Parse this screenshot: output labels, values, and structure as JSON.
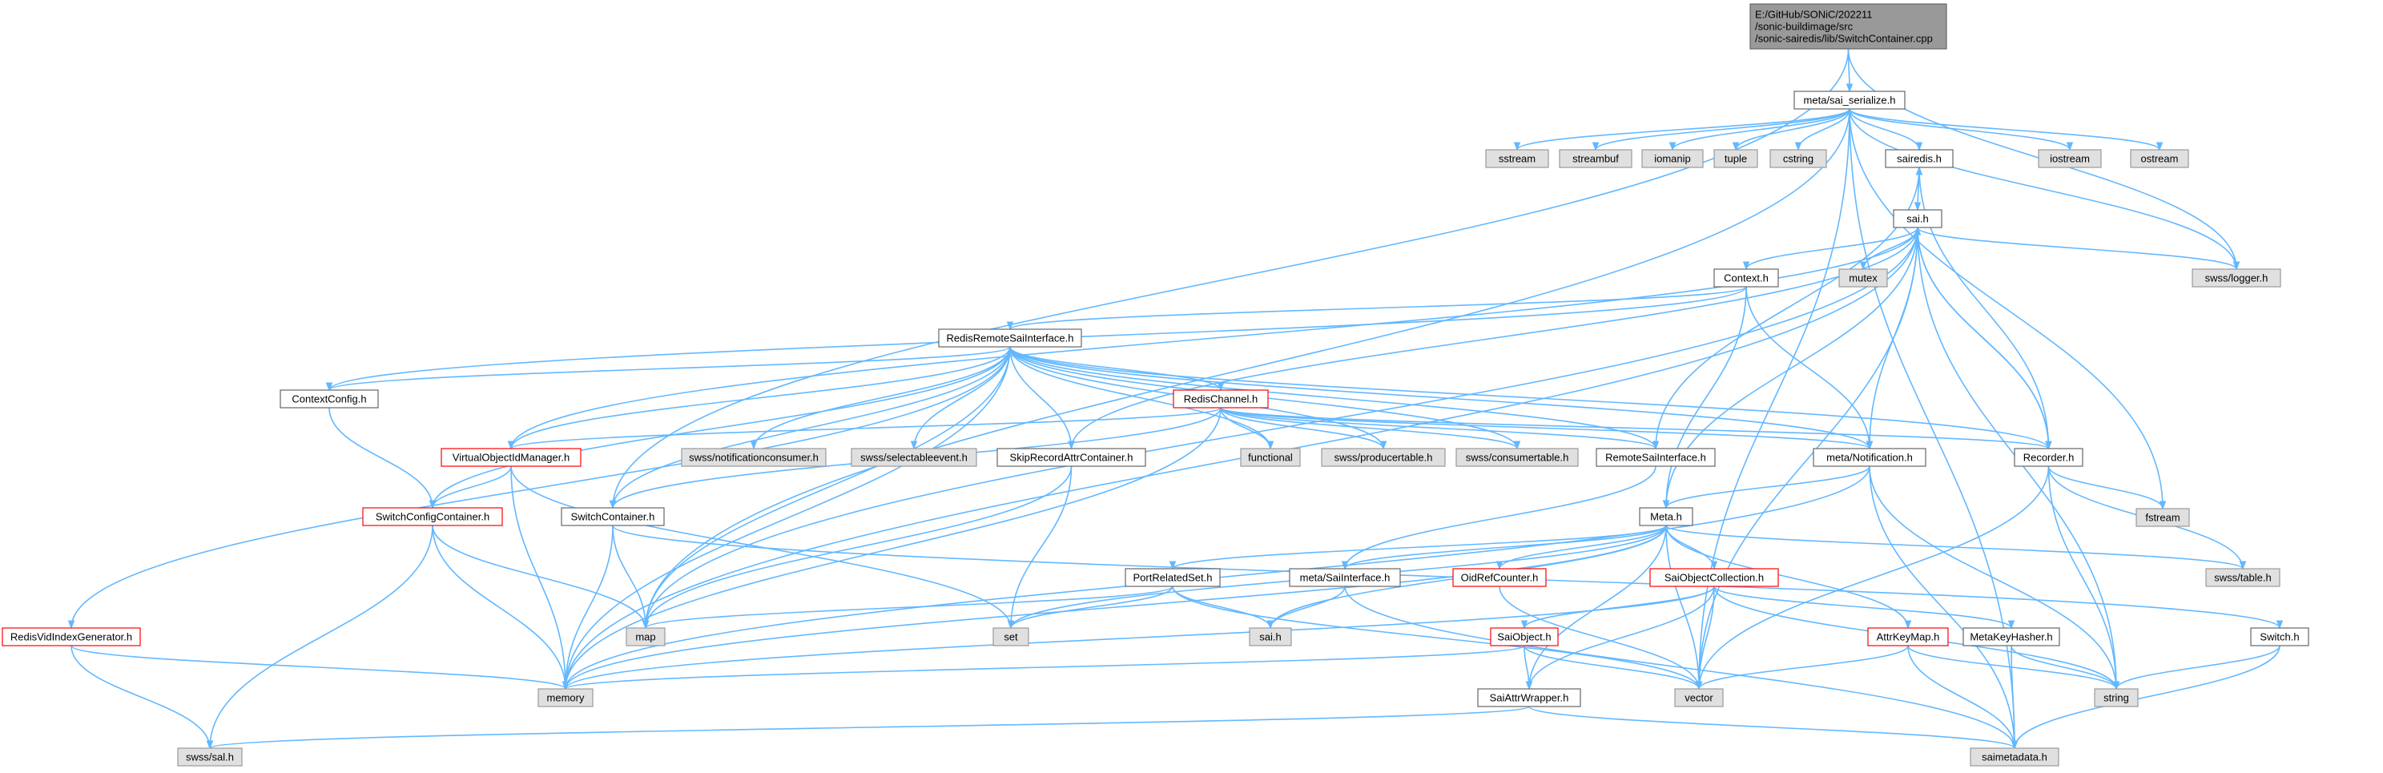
{
  "colors": {
    "edge": "#63b8ff",
    "root_fill": "#999999",
    "root_border": "#666666",
    "doc_border": "#666666",
    "file_border": "#ff0000",
    "system_fill": "#e0e0e0",
    "system_border": "#999999"
  },
  "nodes": [
    {
      "id": "root",
      "lines": [
        "E:/GitHub/SONiC/202211",
        "/sonic-buildimage/src",
        "/sonic-sairedis/lib/SwitchContainer.cpp"
      ],
      "style": "root"
    },
    {
      "id": "meta_sai_serialize",
      "lines": [
        "meta/sai_serialize.h"
      ],
      "style": "doc"
    },
    {
      "id": "sstream",
      "lines": [
        "sstream"
      ],
      "style": "system"
    },
    {
      "id": "streambuf",
      "lines": [
        "streambuf"
      ],
      "style": "system"
    },
    {
      "id": "iomanip",
      "lines": [
        "iomanip"
      ],
      "style": "system"
    },
    {
      "id": "tuple",
      "lines": [
        "tuple"
      ],
      "style": "system"
    },
    {
      "id": "cstring",
      "lines": [
        "cstring"
      ],
      "style": "system"
    },
    {
      "id": "sairedis_h",
      "lines": [
        "sairedis.h"
      ],
      "style": "doc"
    },
    {
      "id": "iostream",
      "lines": [
        "iostream"
      ],
      "style": "system"
    },
    {
      "id": "ostream",
      "lines": [
        "ostream"
      ],
      "style": "system"
    },
    {
      "id": "sai_h",
      "lines": [
        "sai.h"
      ],
      "style": "doc"
    },
    {
      "id": "context_h",
      "lines": [
        "Context.h"
      ],
      "style": "doc"
    },
    {
      "id": "mutex",
      "lines": [
        "mutex"
      ],
      "style": "system"
    },
    {
      "id": "swss_logger",
      "lines": [
        "swss/logger.h"
      ],
      "style": "system"
    },
    {
      "id": "redis_remote",
      "lines": [
        "RedisRemoteSaiInterface.h"
      ],
      "style": "doc"
    },
    {
      "id": "context_config",
      "lines": [
        "ContextConfig.h"
      ],
      "style": "doc"
    },
    {
      "id": "redis_channel",
      "lines": [
        "RedisChannel.h"
      ],
      "style": "file"
    },
    {
      "id": "virtual_oid_mgr",
      "lines": [
        "VirtualObjectIdManager.h"
      ],
      "style": "file"
    },
    {
      "id": "swss_notif_consumer",
      "lines": [
        "swss/notificationconsumer.h"
      ],
      "style": "system"
    },
    {
      "id": "swss_selectable",
      "lines": [
        "swss/selectableevent.h"
      ],
      "style": "system"
    },
    {
      "id": "skip_record",
      "lines": [
        "SkipRecordAttrContainer.h"
      ],
      "style": "doc"
    },
    {
      "id": "functional",
      "lines": [
        "functional"
      ],
      "style": "system"
    },
    {
      "id": "swss_producertable",
      "lines": [
        "swss/producertable.h"
      ],
      "style": "system"
    },
    {
      "id": "swss_consumertable",
      "lines": [
        "swss/consumertable.h"
      ],
      "style": "system"
    },
    {
      "id": "remote_sai",
      "lines": [
        "RemoteSaiInterface.h"
      ],
      "style": "doc"
    },
    {
      "id": "meta_notification",
      "lines": [
        "meta/Notification.h"
      ],
      "style": "doc"
    },
    {
      "id": "recorder_h",
      "lines": [
        "Recorder.h"
      ],
      "style": "doc"
    },
    {
      "id": "fstream",
      "lines": [
        "fstream"
      ],
      "style": "system"
    },
    {
      "id": "switch_config_container",
      "lines": [
        "SwitchConfigContainer.h"
      ],
      "style": "file"
    },
    {
      "id": "switch_container",
      "lines": [
        "SwitchContainer.h"
      ],
      "style": "doc"
    },
    {
      "id": "meta_h",
      "lines": [
        "Meta.h"
      ],
      "style": "doc"
    },
    {
      "id": "swss_table",
      "lines": [
        "swss/table.h"
      ],
      "style": "system"
    },
    {
      "id": "port_related",
      "lines": [
        "PortRelatedSet.h"
      ],
      "style": "doc"
    },
    {
      "id": "meta_sai_interface",
      "lines": [
        "meta/SaiInterface.h"
      ],
      "style": "doc"
    },
    {
      "id": "oid_ref_counter",
      "lines": [
        "OidRefCounter.h"
      ],
      "style": "file"
    },
    {
      "id": "sai_object_collection",
      "lines": [
        "SaiObjectCollection.h"
      ],
      "style": "file"
    },
    {
      "id": "redis_vid_index",
      "lines": [
        "RedisVidIndexGenerator.h"
      ],
      "style": "file"
    },
    {
      "id": "map",
      "lines": [
        "map"
      ],
      "style": "system"
    },
    {
      "id": "set",
      "lines": [
        "set"
      ],
      "style": "system"
    },
    {
      "id": "sai_h2",
      "lines": [
        "sai.h"
      ],
      "style": "system"
    },
    {
      "id": "sai_object",
      "lines": [
        "SaiObject.h"
      ],
      "style": "file"
    },
    {
      "id": "attr_key_map",
      "lines": [
        "AttrKeyMap.h"
      ],
      "style": "file"
    },
    {
      "id": "meta_key_hasher",
      "lines": [
        "MetaKeyHasher.h"
      ],
      "style": "doc"
    },
    {
      "id": "switch_h",
      "lines": [
        "Switch.h"
      ],
      "style": "doc"
    },
    {
      "id": "memory",
      "lines": [
        "memory"
      ],
      "style": "system"
    },
    {
      "id": "vector",
      "lines": [
        "vector"
      ],
      "style": "system"
    },
    {
      "id": "string",
      "lines": [
        "string"
      ],
      "style": "system"
    },
    {
      "id": "sai_attr_wrapper",
      "lines": [
        "SaiAttrWrapper.h"
      ],
      "style": "doc"
    },
    {
      "id": "swss_sal",
      "lines": [
        "swss/sal.h"
      ],
      "style": "system"
    },
    {
      "id": "saimetadata",
      "lines": [
        "saimetadata.h"
      ],
      "style": "system"
    }
  ],
  "edges": [
    [
      "root",
      "meta_sai_serialize"
    ],
    [
      "root",
      "swss_logger"
    ],
    [
      "root",
      "switch_container"
    ],
    [
      "meta_sai_serialize",
      "sstream"
    ],
    [
      "meta_sai_serialize",
      "streambuf"
    ],
    [
      "meta_sai_serialize",
      "iomanip"
    ],
    [
      "meta_sai_serialize",
      "tuple"
    ],
    [
      "meta_sai_serialize",
      "cstring"
    ],
    [
      "meta_sai_serialize",
      "sairedis_h"
    ],
    [
      "meta_sai_serialize",
      "iostream"
    ],
    [
      "meta_sai_serialize",
      "ostream"
    ],
    [
      "meta_sai_serialize",
      "swss_logger"
    ],
    [
      "meta_sai_serialize",
      "saimetadata"
    ],
    [
      "meta_sai_serialize",
      "map"
    ],
    [
      "meta_sai_serialize",
      "fstream"
    ],
    [
      "meta_sai_serialize",
      "vector"
    ],
    [
      "sairedis_h",
      "sai_h"
    ],
    [
      "sai_h",
      "context_h"
    ],
    [
      "sai_h",
      "mutex"
    ],
    [
      "sai_h",
      "swss_logger"
    ],
    [
      "sai_h",
      "memory"
    ],
    [
      "sai_h",
      "map"
    ],
    [
      "sai_h",
      "meta_notification"
    ],
    [
      "sai_h",
      "meta_h"
    ],
    [
      "sai_h",
      "recorder_h"
    ],
    [
      "sai_h",
      "string"
    ],
    [
      "sai_h",
      "vector"
    ],
    [
      "context_h",
      "redis_remote"
    ],
    [
      "context_h",
      "context_config"
    ],
    [
      "context_h",
      "meta_notification"
    ],
    [
      "context_h",
      "meta_h"
    ],
    [
      "redis_remote",
      "context_config"
    ],
    [
      "redis_remote",
      "redis_channel"
    ],
    [
      "redis_remote",
      "virtual_oid_mgr"
    ],
    [
      "redis_remote",
      "swss_notif_consumer"
    ],
    [
      "redis_remote",
      "swss_selectable"
    ],
    [
      "redis_remote",
      "skip_record"
    ],
    [
      "redis_remote",
      "functional"
    ],
    [
      "redis_remote",
      "swss_producertable"
    ],
    [
      "redis_remote",
      "swss_consumertable"
    ],
    [
      "redis_remote",
      "remote_sai"
    ],
    [
      "redis_remote",
      "meta_notification"
    ],
    [
      "redis_remote",
      "recorder_h"
    ],
    [
      "redis_remote",
      "switch_config_container"
    ],
    [
      "redis_remote",
      "switch_container"
    ],
    [
      "redis_remote",
      "redis_vid_index"
    ],
    [
      "redis_remote",
      "map"
    ],
    [
      "redis_remote",
      "memory"
    ],
    [
      "redis_channel",
      "virtual_oid_mgr"
    ],
    [
      "redis_channel",
      "functional"
    ],
    [
      "redis_channel",
      "swss_producertable"
    ],
    [
      "redis_channel",
      "swss_consumertable"
    ],
    [
      "redis_channel",
      "meta_notification"
    ],
    [
      "redis_channel",
      "recorder_h"
    ],
    [
      "redis_channel",
      "switch_container"
    ],
    [
      "redis_channel",
      "memory"
    ],
    [
      "redis_channel",
      "remote_sai"
    ],
    [
      "virtual_oid_mgr",
      "switch_config_container"
    ],
    [
      "virtual_oid_mgr",
      "set"
    ],
    [
      "virtual_oid_mgr",
      "memory"
    ],
    [
      "virtual_oid_mgr",
      "sai_h"
    ],
    [
      "context_config",
      "switch_config_container"
    ],
    [
      "skip_record",
      "map"
    ],
    [
      "skip_record",
      "set"
    ],
    [
      "skip_record",
      "sai_h"
    ],
    [
      "remote_sai",
      "meta_sai_interface"
    ],
    [
      "remote_sai",
      "sairedis_h"
    ],
    [
      "meta_notification",
      "meta_h"
    ],
    [
      "meta_notification",
      "string"
    ],
    [
      "meta_notification",
      "saimetadata"
    ],
    [
      "meta_notification",
      "memory"
    ],
    [
      "recorder_h",
      "swss_table"
    ],
    [
      "recorder_h",
      "fstream"
    ],
    [
      "recorder_h",
      "string"
    ],
    [
      "recorder_h",
      "vector"
    ],
    [
      "recorder_h",
      "sai_h"
    ],
    [
      "recorder_h",
      "sairedis_h"
    ],
    [
      "switch_config_container",
      "map"
    ],
    [
      "switch_config_container",
      "memory"
    ],
    [
      "switch_config_container",
      "swss_sal"
    ],
    [
      "switch_container",
      "map"
    ],
    [
      "switch_container",
      "memory"
    ],
    [
      "switch_container",
      "switch_h"
    ],
    [
      "meta_h",
      "port_related"
    ],
    [
      "meta_h",
      "meta_sai_interface"
    ],
    [
      "meta_h",
      "oid_ref_counter"
    ],
    [
      "meta_h",
      "sai_object_collection"
    ],
    [
      "meta_h",
      "attr_key_map"
    ],
    [
      "meta_h",
      "swss_table"
    ],
    [
      "meta_h",
      "set"
    ],
    [
      "meta_h",
      "sai_h2"
    ],
    [
      "meta_h",
      "memory"
    ],
    [
      "meta_h",
      "vector"
    ],
    [
      "meta_h",
      "sai_attr_wrapper"
    ],
    [
      "port_related",
      "map"
    ],
    [
      "port_related",
      "set"
    ],
    [
      "port_related",
      "sai_h2"
    ],
    [
      "port_related",
      "vector"
    ],
    [
      "meta_sai_interface",
      "sai_h2"
    ],
    [
      "meta_sai_interface",
      "saimetadata"
    ],
    [
      "oid_ref_counter",
      "vector"
    ],
    [
      "sai_object_collection",
      "sai_object"
    ],
    [
      "sai_object_collection",
      "meta_key_hasher"
    ],
    [
      "sai_object_collection",
      "memory"
    ],
    [
      "sai_object_collection",
      "vector"
    ],
    [
      "sai_object_collection",
      "sai_attr_wrapper"
    ],
    [
      "sai_object_collection",
      "string"
    ],
    [
      "sai_object",
      "memory"
    ],
    [
      "sai_object",
      "vector"
    ],
    [
      "sai_object",
      "sai_attr_wrapper"
    ],
    [
      "attr_key_map",
      "saimetadata"
    ],
    [
      "attr_key_map",
      "vector"
    ],
    [
      "attr_key_map",
      "string"
    ],
    [
      "meta_key_hasher",
      "saimetadata"
    ],
    [
      "meta_key_hasher",
      "string"
    ],
    [
      "switch_h",
      "string"
    ],
    [
      "switch_h",
      "saimetadata"
    ],
    [
      "redis_vid_index",
      "memory"
    ],
    [
      "redis_vid_index",
      "swss_sal"
    ],
    [
      "sai_attr_wrapper",
      "saimetadata"
    ],
    [
      "sai_attr_wrapper",
      "swss_sal"
    ]
  ]
}
